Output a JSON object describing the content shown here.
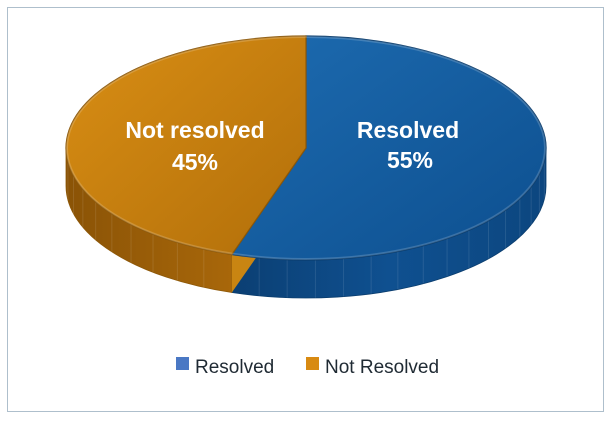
{
  "chart_data": {
    "type": "pie",
    "style": "3d",
    "categories": [
      "Resolved",
      "Not Resolved"
    ],
    "values": [
      55,
      45
    ],
    "unit": "%",
    "slice_labels": [
      {
        "name": "Resolved",
        "value": "55%"
      },
      {
        "name": "Not resolved",
        "value": "45%"
      }
    ],
    "legend": {
      "position": "bottom",
      "entries": [
        "Resolved",
        "Not Resolved"
      ]
    },
    "colors": {
      "Resolved": "#125b9e",
      "Not Resolved": "#c67d0d",
      "legend_resolved": "#4a78c4",
      "legend_not_resolved": "#d88a12"
    }
  }
}
